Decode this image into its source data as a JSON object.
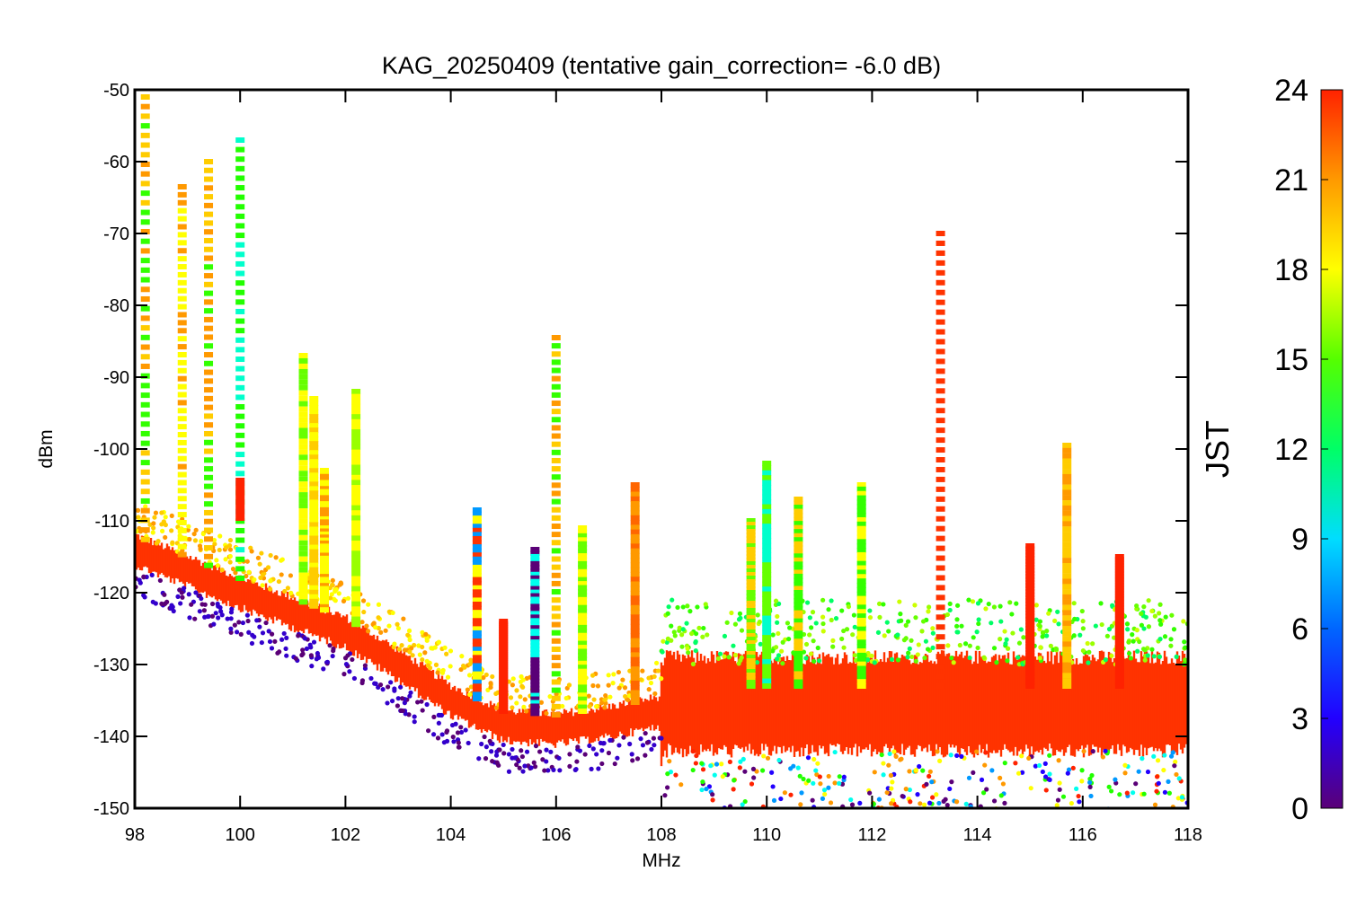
{
  "chart_data": {
    "type": "scatter",
    "title": "KAG_20250409 (tentative gain_correction= -6.0 dB)",
    "xlabel": "MHz",
    "ylabel": "dBm",
    "xlim": [
      98,
      118
    ],
    "ylim": [
      -150,
      -50
    ],
    "x_ticks": [
      98,
      100,
      102,
      104,
      106,
      108,
      110,
      112,
      114,
      116,
      118
    ],
    "y_ticks": [
      -50,
      -60,
      -70,
      -80,
      -90,
      -100,
      -110,
      -120,
      -130,
      -140,
      -150
    ],
    "colorbar": {
      "label": "JST",
      "range": [
        0,
        24
      ],
      "ticks": [
        0,
        3,
        6,
        9,
        12,
        15,
        18,
        21,
        24
      ],
      "colormap": [
        "#5a0077",
        "#2200ff",
        "#0099ff",
        "#00ffee",
        "#22ff00",
        "#ffff00",
        "#ff9900",
        "#ff2200"
      ]
    },
    "marker_color_default": "#ff3300",
    "noise_floor": {
      "x": [
        98,
        100,
        102,
        103,
        104,
        105,
        106,
        107,
        108,
        108.05,
        110,
        112,
        114,
        116,
        118
      ],
      "y": [
        -114,
        -120,
        -125.5,
        -130,
        -135,
        -138.5,
        -139,
        -138,
        -136.5,
        -135,
        -135,
        -135,
        -135,
        -135,
        -135
      ]
    },
    "signals": [
      {
        "freq": 98.2,
        "top": -51,
        "colors": [
          "#33ff00",
          "#ffcc00",
          "#ff9900"
        ]
      },
      {
        "freq": 98.9,
        "top": -63.5,
        "colors": [
          "#ffff00",
          "#ff9900"
        ]
      },
      {
        "freq": 99.4,
        "top": -60,
        "colors": [
          "#ff9900",
          "#ffcc00",
          "#33ff00"
        ]
      },
      {
        "freq": 100.0,
        "top": -57,
        "colors": [
          "#22ff00",
          "#00ffcc"
        ],
        "hour_top": -104,
        "hour_color": "#ff2200"
      },
      {
        "freq": 101.2,
        "top": -87,
        "colors": [
          "#66ff00",
          "#ffff00"
        ]
      },
      {
        "freq": 101.4,
        "top": -93,
        "colors": [
          "#ffcc00",
          "#ffff00"
        ]
      },
      {
        "freq": 101.6,
        "top": -103,
        "colors": [
          "#ffff00",
          "#ff9900"
        ]
      },
      {
        "freq": 102.2,
        "top": -92,
        "colors": [
          "#ffff00",
          "#99ff00"
        ]
      },
      {
        "freq": 104.5,
        "top": -108.5,
        "colors": [
          "#ff3300",
          "#0099ff",
          "#ffff00"
        ]
      },
      {
        "freq": 105.0,
        "top": -124,
        "colors": [
          "#ff2200"
        ]
      },
      {
        "freq": 105.6,
        "top": -114,
        "colors": [
          "#5a0077",
          "#00ffee"
        ]
      },
      {
        "freq": 106.0,
        "top": -84.5,
        "colors": [
          "#33ff00",
          "#ffcc00",
          "#ff9900"
        ]
      },
      {
        "freq": 106.5,
        "top": -111,
        "colors": [
          "#66ff00",
          "#ffff00"
        ]
      },
      {
        "freq": 107.5,
        "top": -105,
        "colors": [
          "#ff9900",
          "#ff6600"
        ]
      },
      {
        "freq": 109.7,
        "top": -110,
        "colors": [
          "#ffcc00",
          "#66ff00"
        ]
      },
      {
        "freq": 110.0,
        "top": -102,
        "colors": [
          "#00ffcc",
          "#66ff00"
        ]
      },
      {
        "freq": 110.6,
        "top": -107,
        "colors": [
          "#ffcc00",
          "#33ff00"
        ]
      },
      {
        "freq": 111.8,
        "top": -105,
        "colors": [
          "#33ff00",
          "#ffff00"
        ]
      },
      {
        "freq": 113.3,
        "top": -70,
        "colors": [
          "#ff3300"
        ]
      },
      {
        "freq": 115.0,
        "top": -113.5,
        "colors": [
          "#ff2200"
        ]
      },
      {
        "freq": 115.7,
        "top": -99.5,
        "colors": [
          "#ff9900",
          "#ffcc00"
        ]
      },
      {
        "freq": 116.7,
        "top": -115,
        "colors": [
          "#ff2200"
        ]
      }
    ]
  }
}
